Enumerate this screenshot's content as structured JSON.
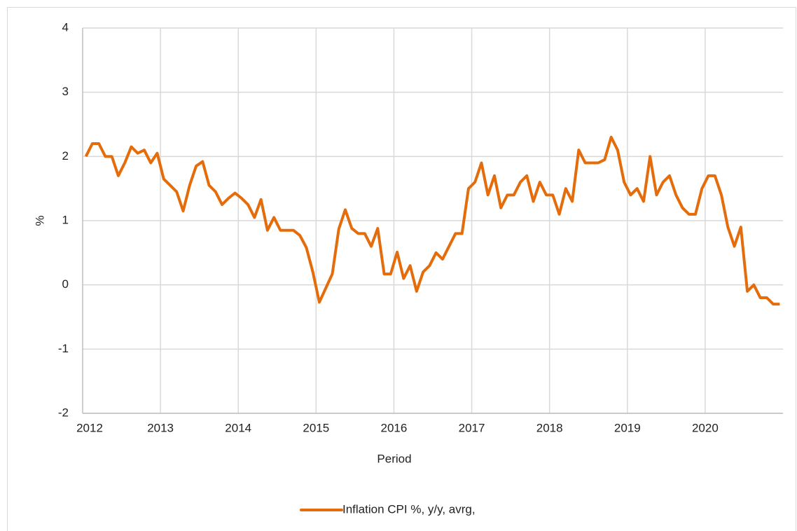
{
  "chart_data": {
    "type": "line",
    "ylabel": "%",
    "xlabel": "Period",
    "categories": [
      "2012",
      null,
      null,
      null,
      null,
      null,
      null,
      null,
      null,
      null,
      null,
      null,
      "2013",
      null,
      null,
      null,
      null,
      null,
      null,
      null,
      null,
      null,
      null,
      null,
      "2014",
      null,
      null,
      null,
      null,
      null,
      null,
      null,
      null,
      null,
      null,
      null,
      "2015",
      null,
      null,
      null,
      null,
      null,
      null,
      null,
      null,
      null,
      null,
      null,
      "2016",
      null,
      null,
      null,
      null,
      null,
      null,
      null,
      null,
      null,
      null,
      null,
      "2017",
      null,
      null,
      null,
      null,
      null,
      null,
      null,
      null,
      null,
      null,
      null,
      "2018",
      null,
      null,
      null,
      null,
      null,
      null,
      null,
      null,
      null,
      null,
      null,
      "2019",
      null,
      null,
      null,
      null,
      null,
      null,
      null,
      null,
      null,
      null,
      null,
      "2020",
      null,
      null,
      null,
      null,
      null,
      null,
      null,
      null,
      null,
      null,
      null
    ],
    "series": [
      {
        "name": "Inflation CPI %, y/y, avrg,",
        "color": "#e46c0a",
        "values": [
          2.0,
          2.2,
          2.2,
          2.0,
          2.0,
          1.7,
          1.9,
          2.15,
          2.05,
          2.1,
          1.9,
          2.05,
          1.65,
          1.55,
          1.45,
          1.15,
          1.55,
          1.85,
          1.92,
          1.55,
          1.45,
          1.25,
          1.35,
          1.43,
          1.35,
          1.25,
          1.05,
          1.33,
          0.85,
          1.05,
          0.85,
          0.85,
          0.85,
          0.77,
          0.58,
          0.2,
          -0.27,
          -0.05,
          0.17,
          0.87,
          1.17,
          0.88,
          0.8,
          0.8,
          0.6,
          0.88,
          0.17,
          0.17,
          0.51,
          0.1,
          0.3,
          -0.1,
          0.2,
          0.3,
          0.5,
          0.4,
          0.6,
          0.8,
          0.8,
          1.5,
          1.6,
          1.9,
          1.4,
          1.7,
          1.2,
          1.4,
          1.4,
          1.6,
          1.7,
          1.3,
          1.6,
          1.4,
          1.4,
          1.1,
          1.5,
          1.3,
          2.1,
          1.9,
          1.9,
          1.9,
          1.95,
          2.3,
          2.1,
          1.6,
          1.4,
          1.5,
          1.3,
          2.0,
          1.4,
          1.6,
          1.7,
          1.4,
          1.2,
          1.1,
          1.1,
          1.5,
          1.7,
          1.7,
          1.4,
          0.9,
          0.6,
          0.9,
          -0.1,
          0.0,
          -0.2,
          -0.2,
          -0.3,
          -0.3
        ]
      }
    ],
    "ylim": [
      -2,
      4
    ],
    "yticks": [
      -2,
      -1,
      0,
      1,
      2,
      3,
      4
    ],
    "grid": true,
    "legend": "bottom"
  }
}
